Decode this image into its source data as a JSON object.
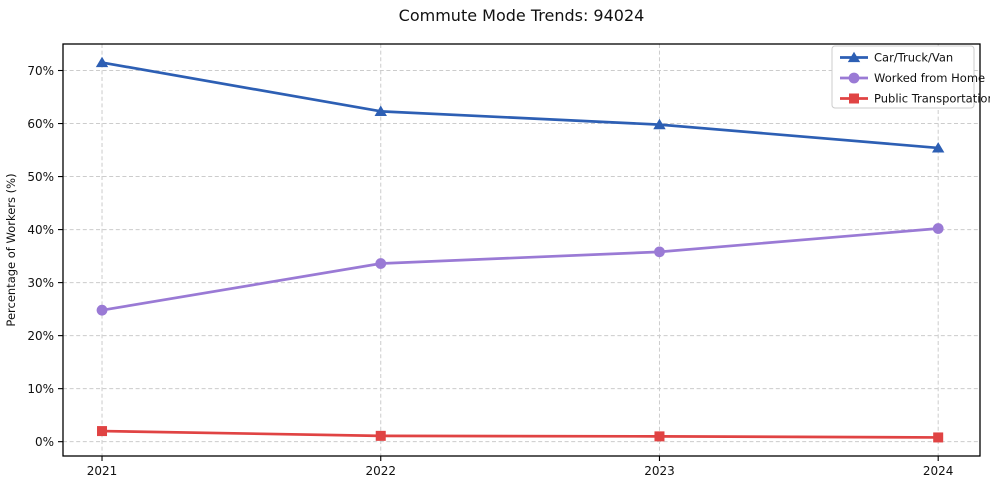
{
  "figure": {
    "title": "Commute Mode Trends: 94024"
  },
  "chart_data": {
    "type": "line",
    "title": "Commute Mode Trends: 94024",
    "xlabel": "",
    "ylabel": "Percentage of Workers (%)",
    "x": [
      2021,
      2022,
      2023,
      2024
    ],
    "xtick_labels": [
      "2021",
      "2022",
      "2023",
      "2024"
    ],
    "yticks": [
      0,
      10,
      20,
      30,
      40,
      50,
      60,
      70
    ],
    "ytick_labels": [
      "0%",
      "10%",
      "20%",
      "30%",
      "40%",
      "50%",
      "60%",
      "70%"
    ],
    "xlim": [
      2020.86,
      2024.15
    ],
    "ylim": [
      -2.7,
      75.0
    ],
    "grid": true,
    "legend": {
      "position": "upper right",
      "entries": [
        "Car/Truck/Van",
        "Worked from Home",
        "Public Transportation"
      ]
    },
    "series": [
      {
        "name": "Car/Truck/Van",
        "marker": "triangle",
        "color": "#2d5fb4",
        "values": [
          71.5,
          62.3,
          59.8,
          55.4
        ]
      },
      {
        "name": "Worked from Home",
        "marker": "circle",
        "color": "#9a7ad5",
        "values": [
          24.8,
          33.6,
          35.8,
          40.2
        ]
      },
      {
        "name": "Public Transportation",
        "marker": "square",
        "color": "#e04343",
        "values": [
          2.0,
          1.1,
          1.0,
          0.8
        ]
      }
    ],
    "style": {
      "grid_color": "#cccccc",
      "axis_color": "#000000",
      "background": "#ffffff"
    }
  }
}
